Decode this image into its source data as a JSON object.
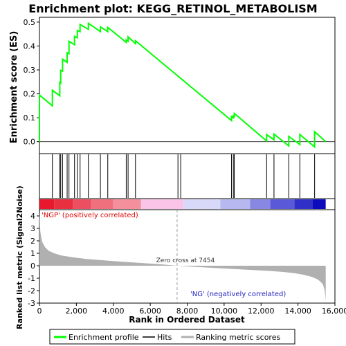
{
  "chart_data": {
    "type": "line",
    "title": "Enrichment plot: KEGG_RETINOL_METABOLISM",
    "enrichment_panel": {
      "ylabel": "Enrichment score (ES)",
      "ylim": [
        -0.05,
        0.52
      ],
      "yticks": [
        0.0,
        0.1,
        0.2,
        0.3,
        0.4,
        0.5
      ],
      "ytick_labels": [
        "0.0",
        "0.1",
        "0.2",
        "0.3",
        "0.4",
        "0.5"
      ],
      "series_color": "#00ff00",
      "profile": {
        "x": [
          0,
          0,
          700,
          700,
          1100,
          1100,
          1150,
          1150,
          1250,
          1250,
          1500,
          1500,
          1600,
          1600,
          1900,
          1900,
          2050,
          2050,
          2200,
          2200,
          2650,
          2650,
          3300,
          3300,
          3700,
          3700,
          4700,
          4700,
          4800,
          4800,
          5200,
          5200,
          10400,
          10400,
          10500,
          10500,
          10550,
          10550,
          12300,
          12300,
          12700,
          12700,
          13500,
          13500,
          14100,
          14100,
          14900,
          14900,
          15500
        ],
        "y": [
          0.0,
          0.195,
          0.15,
          0.215,
          0.192,
          0.248,
          0.245,
          0.298,
          0.295,
          0.345,
          0.332,
          0.372,
          0.368,
          0.42,
          0.405,
          0.44,
          0.435,
          0.465,
          0.46,
          0.49,
          0.47,
          0.495,
          0.46,
          0.48,
          0.46,
          0.478,
          0.415,
          0.425,
          0.42,
          0.438,
          0.41,
          0.422,
          0.088,
          0.105,
          0.1,
          0.108,
          0.105,
          0.118,
          0.003,
          0.03,
          0.008,
          0.032,
          -0.018,
          0.022,
          -0.012,
          0.03,
          -0.022,
          0.042,
          0.0
        ]
      }
    },
    "hits": [
      700,
      1100,
      1150,
      1250,
      1500,
      1600,
      1900,
      2050,
      2200,
      2650,
      3300,
      3700,
      4700,
      4800,
      5200,
      7500,
      7650,
      10400,
      10500,
      10550,
      12300,
      12700,
      13500,
      14100,
      14900
    ],
    "gradient_bar": {
      "blocks": [
        {
          "x0": 0,
          "x1": 800,
          "color": "#e8192c"
        },
        {
          "x0": 800,
          "x1": 1800,
          "color": "#e93040"
        },
        {
          "x0": 1800,
          "x1": 2800,
          "color": "#ec5060"
        },
        {
          "x0": 2800,
          "x1": 4000,
          "color": "#f0707e"
        },
        {
          "x0": 4000,
          "x1": 5500,
          "color": "#f3909c"
        },
        {
          "x0": 5500,
          "x1": 7800,
          "color": "#f9c4e8"
        },
        {
          "x0": 7800,
          "x1": 9800,
          "color": "#d8d8f8"
        },
        {
          "x0": 9800,
          "x1": 11400,
          "color": "#b8b8f0"
        },
        {
          "x0": 11400,
          "x1": 12500,
          "color": "#8888e4"
        },
        {
          "x0": 12500,
          "x1": 13800,
          "color": "#5a5ad8"
        },
        {
          "x0": 13800,
          "x1": 14800,
          "color": "#3030c8"
        },
        {
          "x0": 14800,
          "x1": 15500,
          "color": "#0c0cbe"
        }
      ]
    },
    "ranking_panel": {
      "ylabel": "Ranked list metric (Signal2Noise)",
      "ylim": [
        -3.0,
        4.5
      ],
      "yticks": [
        4,
        3,
        2,
        1,
        0,
        -1,
        -2,
        -3
      ],
      "ytick_labels": [
        "4",
        "3",
        "2",
        "1",
        "0",
        "-1",
        "-2",
        "-3"
      ],
      "fill_color": "#b0b0b0",
      "metric": {
        "x": [
          0,
          50,
          150,
          300,
          500,
          800,
          1200,
          1800,
          2500,
          3500,
          4500,
          5500,
          6500,
          7454,
          8500,
          9500,
          10500,
          11500,
          12500,
          13200,
          13800,
          14300,
          14700,
          15000,
          15200,
          15350,
          15450,
          15500
        ],
        "y": [
          4.3,
          2.7,
          1.9,
          1.5,
          1.2,
          1.0,
          0.82,
          0.68,
          0.55,
          0.43,
          0.32,
          0.22,
          0.12,
          0.0,
          -0.1,
          -0.18,
          -0.26,
          -0.34,
          -0.42,
          -0.5,
          -0.6,
          -0.72,
          -0.88,
          -1.05,
          -1.25,
          -1.5,
          -2.0,
          -2.8
        ]
      },
      "zero_cross_label": "Zero cross at 7454",
      "zero_cross_x": 7454,
      "pos_label": "'NGP' (positively correlated)",
      "neg_label": "'NG' (negatively correlated)"
    },
    "x_axis": {
      "label": "Rank in Ordered Dataset",
      "xlim": [
        0,
        16000
      ],
      "ticks": [
        0,
        2000,
        4000,
        6000,
        8000,
        10000,
        12000,
        14000,
        16000
      ],
      "tick_labels": [
        "0",
        "2,000",
        "4,000",
        "6,000",
        "8,000",
        "10,000",
        "12,000",
        "14,000",
        "16,000"
      ]
    },
    "legend": {
      "placement": "bottom",
      "items": [
        {
          "label": "Enrichment profile",
          "color": "#00ff00"
        },
        {
          "label": "Hits",
          "color": "#000000"
        },
        {
          "label": "Ranking metric scores",
          "color": "#b0b0b0"
        }
      ]
    }
  }
}
